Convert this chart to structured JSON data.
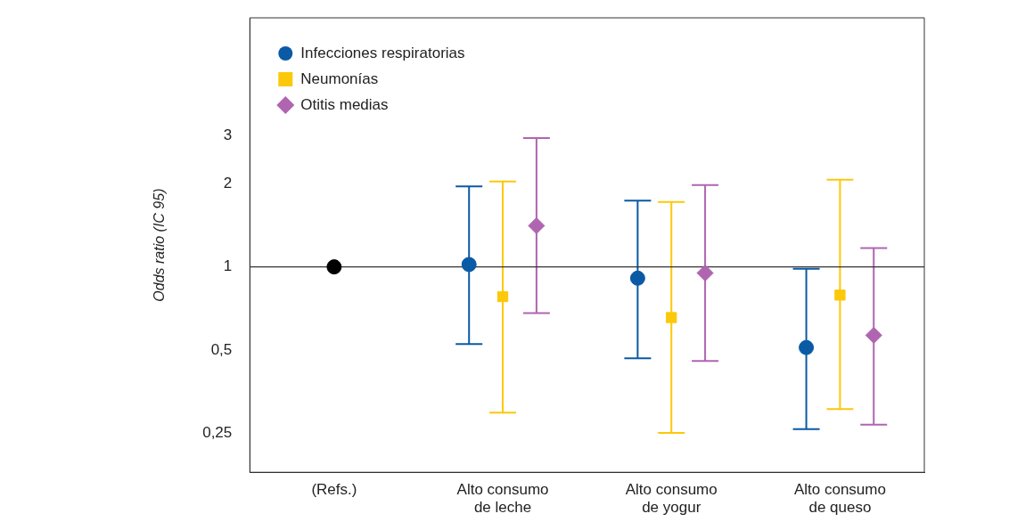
{
  "chart_data": {
    "type": "scatter",
    "ylabel": "Odds ratio (IC 95)",
    "categories": [
      "(Refs.)",
      "Alto consumo de leche",
      "Alto consumo de yogur",
      "Alto consumo de queso"
    ],
    "series": [
      {
        "name": "Infecciones respiratorias",
        "color": "#0a5aa5",
        "marker": "circle",
        "values": [
          null,
          1.02,
          0.91,
          0.51
        ],
        "errors": [
          null,
          [
            0.525,
            1.96
          ],
          [
            0.466,
            1.74
          ],
          [
            0.258,
            0.985
          ]
        ]
      },
      {
        "name": "Neumonías",
        "color": "#fcc80a",
        "marker": "square",
        "values": [
          null,
          0.78,
          0.655,
          0.79
        ],
        "errors": [
          null,
          [
            0.296,
            2.04
          ],
          [
            0.25,
            1.72
          ],
          [
            0.305,
            2.07
          ]
        ]
      },
      {
        "name": "Otitis medias",
        "color": "#b065b0",
        "marker": "diamond",
        "values": [
          null,
          1.41,
          0.95,
          0.565
        ],
        "errors": [
          null,
          [
            0.68,
            2.93
          ],
          [
            0.456,
            1.98
          ],
          [
            0.268,
            1.17
          ]
        ]
      },
      {
        "color": "#000000",
        "marker": "circle",
        "values": [
          1,
          null,
          null,
          null
        ]
      }
    ],
    "log": "y",
    "ylim": [
      0.18,
      8
    ],
    "yticks": [
      {
        "value": 0.25,
        "label": "0,25"
      },
      {
        "value": 0.5,
        "label": "0,5"
      },
      1,
      2,
      3
    ],
    "ref_lines": [
      {
        "axis": "y",
        "value": 1,
        "color": "#333333"
      }
    ],
    "grid": false,
    "legend": "top left"
  }
}
